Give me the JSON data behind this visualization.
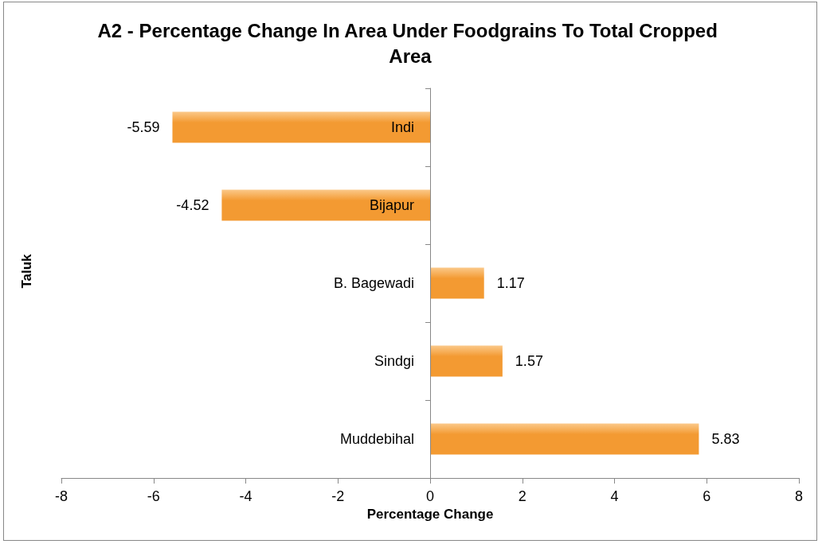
{
  "chart_data": {
    "type": "bar",
    "orientation": "horizontal",
    "title": "A2 - Percentage Change In Area Under Foodgrains To Total Cropped Area",
    "xlabel": "Percentage Change",
    "ylabel": "Taluk",
    "categories": [
      "Indi",
      "Bijapur",
      "B. Bagewadi",
      "Sindgi",
      "Muddebihal"
    ],
    "values": [
      -5.59,
      -4.52,
      1.17,
      1.57,
      5.83
    ],
    "color": "#f39a32",
    "xlim": [
      -8,
      8
    ],
    "xticks": [
      -8,
      -6,
      -4,
      -2,
      0,
      2,
      4,
      6,
      8
    ],
    "data_labels": true,
    "grid": false
  }
}
